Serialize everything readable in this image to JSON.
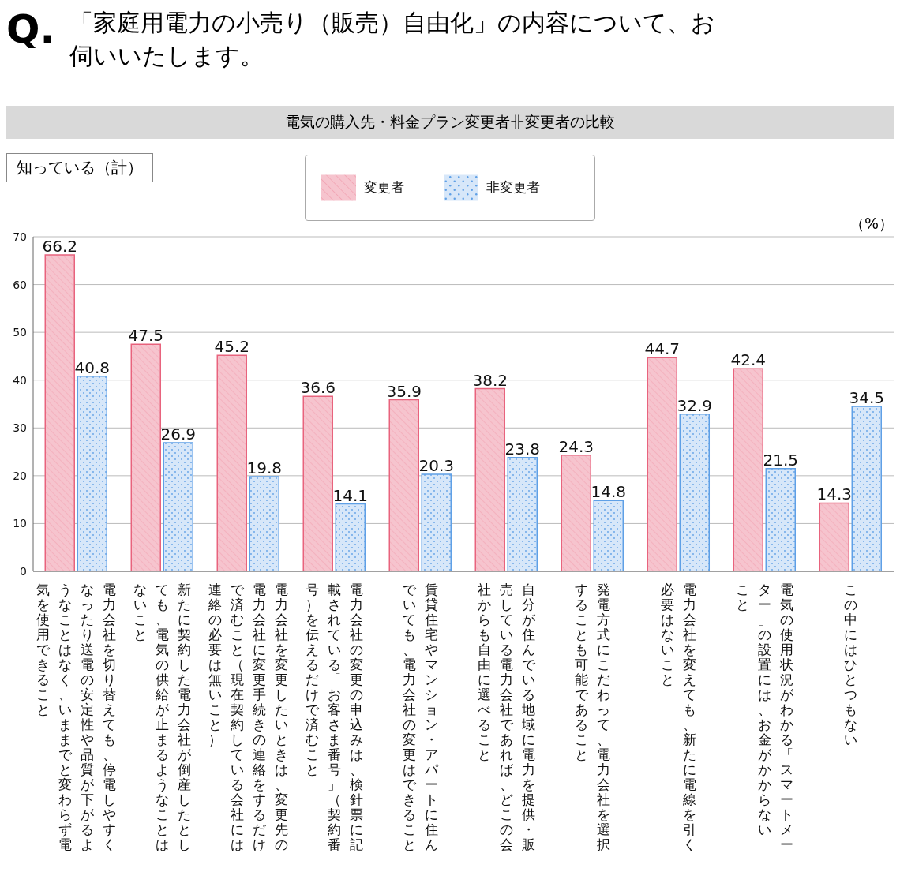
{
  "chart_data": {
    "type": "bar",
    "title": "「家庭用電力の小売り（販売）自由化」の内容について、お伺いいたします。",
    "subtitle": "電気の購入先・料金プラン変更者非変更者の比較",
    "ylabel": "（%）",
    "annotations": [
      "Q.",
      "知っている（計）"
    ],
    "categories": [
      "電力会社を切り替えても、停電しやすくなったり送電の安定性や品質が下がるようなことはなく、いままでと変わらず電気を使用できること",
      "新たに契約した電力会社が倒産したとしても、電気の供給が止まるようなことはないこと",
      "電力会社を変更したいときは、変更先の電力会社に変更手続きの連絡をするだけで済むこと（現在契約している会社には連絡の必要は無いこと）",
      "電力会社の変更の申込みは、検針票に記載されている「お客さま番号」（契約番号）を伝えるだけで済むこと",
      "賃貸住宅やマンション・アパートに住んでいても、電力会社の変更はできること",
      "自分が住んでいる地域に電力を提供・販売している電力会社であれば、どこの会社からも自由に選べること",
      "発電方式にこだわって、電力会社を選択することも可能であること",
      "電力会社を変えても、新たに電線を引く必要はないこと",
      "電気の使用状況がわかる「スマートメーター」の設置には、お金がかからないこと",
      "この中にはひとつもない"
    ],
    "series": [
      {
        "name": "変更者",
        "color": "#e8637d",
        "values": [
          66.2,
          47.5,
          45.2,
          36.6,
          35.9,
          38.2,
          24.3,
          44.7,
          42.4,
          14.3
        ]
      },
      {
        "name": "非変更者",
        "color": "#5fa0e6",
        "values": [
          40.8,
          26.9,
          19.8,
          14.1,
          20.3,
          23.8,
          14.8,
          32.9,
          21.5,
          34.5
        ]
      }
    ],
    "ylim": [
      0,
      70
    ],
    "yticks": [
      0,
      10,
      20,
      30,
      40,
      50,
      60,
      70
    ],
    "grid": "y",
    "legend": "top",
    "data_labels": true
  }
}
